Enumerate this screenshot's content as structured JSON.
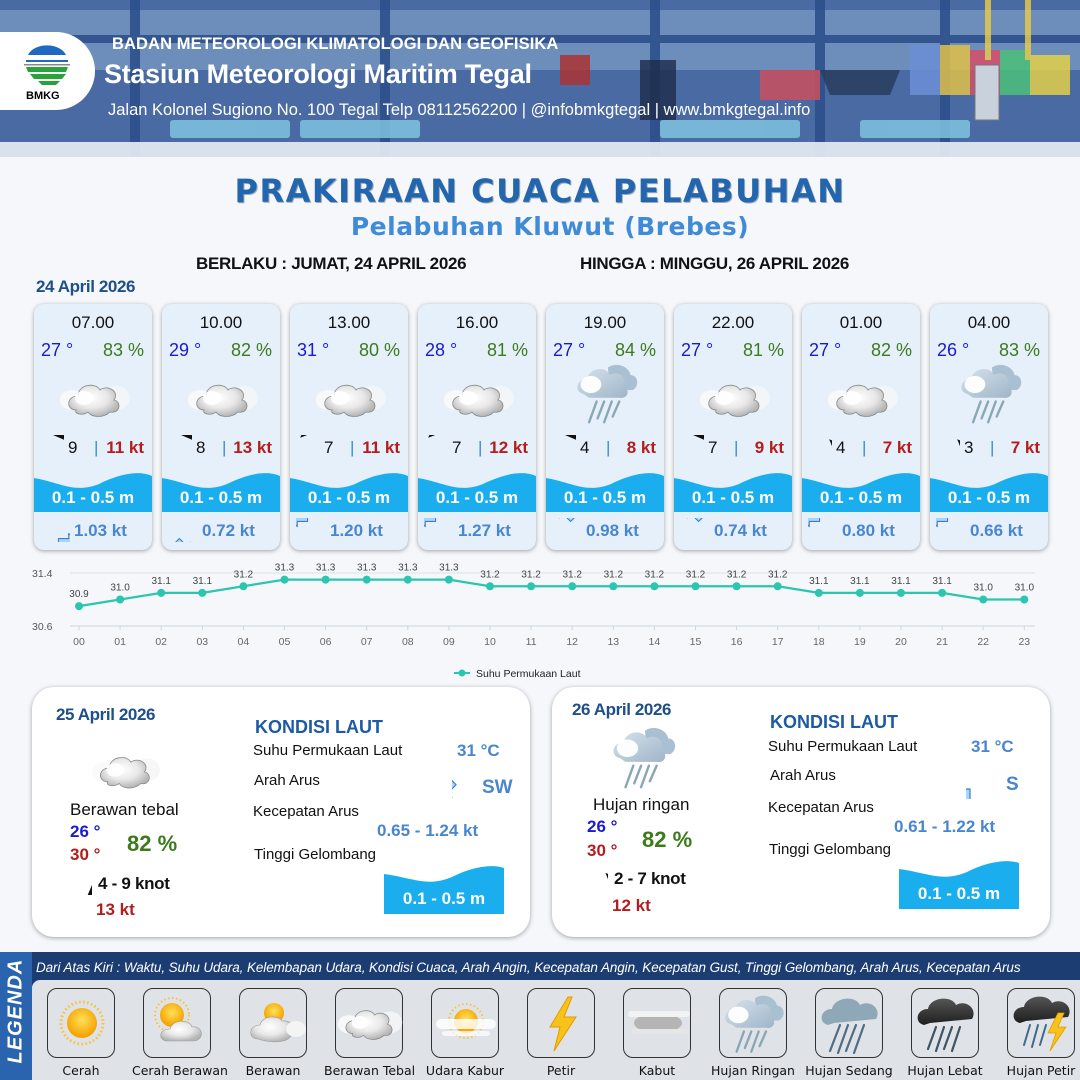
{
  "header": {
    "logo_text": "BMKG",
    "organization": "BADAN METEOROLOGI KLIMATOLOGI DAN GEOFISIKA",
    "station": "Stasiun Meteorologi Maritim Tegal",
    "address": "Jalan Kolonel Sugiono No. 100 Tegal Telp 08112562200 | @infobmkgtegal  | www.bmkgtegal.info"
  },
  "title": "PRAKIRAAN CUACA PELABUHAN",
  "subtitle": "Pelabuhan Kluwut (Brebes)",
  "validity": {
    "from": "BERLAKU : JUMAT, 24 APRIL 2026",
    "to": "HINGGA :  MINGGU, 26 APRIL 2026"
  },
  "day1": {
    "date": "24 April 2026",
    "slots": [
      {
        "time": "07.00",
        "temp": "27 °",
        "humidity": "83 %",
        "weather": "berawan-tebal",
        "wind_dir_deg": 270,
        "wind_speed": "9",
        "sep": "|",
        "gust": "11 kt",
        "wave": "0.1 - 0.5 m",
        "current_dir_deg": 90,
        "current_speed": "1.03 kt"
      },
      {
        "time": "10.00",
        "temp": "29 °",
        "humidity": "82 %",
        "weather": "berawan-tebal",
        "wind_dir_deg": 270,
        "wind_speed": "8",
        "sep": "|",
        "gust": "13 kt",
        "wave": "0.1 - 0.5 m",
        "current_dir_deg": 135,
        "current_speed": "0.72 kt"
      },
      {
        "time": "13.00",
        "temp": "31 °",
        "humidity": "80 %",
        "weather": "berawan-tebal",
        "wind_dir_deg": 225,
        "wind_speed": "7",
        "sep": "|",
        "gust": "11 kt",
        "wave": "0.1 - 0.5 m",
        "current_dir_deg": 270,
        "current_speed": "1.20 kt"
      },
      {
        "time": "16.00",
        "temp": "28 °",
        "humidity": "81 %",
        "weather": "berawan-tebal",
        "wind_dir_deg": 225,
        "wind_speed": "7",
        "sep": "|",
        "gust": "12 kt",
        "wave": "0.1 - 0.5 m",
        "current_dir_deg": 270,
        "current_speed": "1.27 kt"
      },
      {
        "time": "19.00",
        "temp": "27 °",
        "humidity": "84 %",
        "weather": "hujan-ringan",
        "wind_dir_deg": 270,
        "wind_speed": "4",
        "sep": "|",
        "gust": "8 kt",
        "wave": "0.1 - 0.5 m",
        "current_dir_deg": 315,
        "current_speed": "0.98 kt"
      },
      {
        "time": "22.00",
        "temp": "27 °",
        "humidity": "81 %",
        "weather": "berawan-tebal",
        "wind_dir_deg": 270,
        "wind_speed": "7",
        "sep": "|",
        "gust": "9 kt",
        "wave": "0.1 - 0.5 m",
        "current_dir_deg": 315,
        "current_speed": "0.74 kt"
      },
      {
        "time": "01.00",
        "temp": "27 °",
        "humidity": "82 %",
        "weather": "berawan-tebal",
        "wind_dir_deg": 315,
        "wind_speed": "4",
        "sep": "|",
        "gust": "7 kt",
        "wave": "0.1 - 0.5 m",
        "current_dir_deg": 270,
        "current_speed": "0.80 kt"
      },
      {
        "time": "04.00",
        "temp": "26 °",
        "humidity": "83 %",
        "weather": "hujan-ringan",
        "wind_dir_deg": 315,
        "wind_speed": "3",
        "sep": "|",
        "gust": "7 kt",
        "wave": "0.1 - 0.5 m",
        "current_dir_deg": 270,
        "current_speed": "0.66 kt"
      }
    ]
  },
  "chart_data": {
    "type": "line",
    "title": "",
    "xlabel": "",
    "ylabel": "",
    "categories": [
      "00",
      "01",
      "02",
      "03",
      "04",
      "05",
      "06",
      "07",
      "08",
      "09",
      "10",
      "11",
      "12",
      "13",
      "14",
      "15",
      "16",
      "17",
      "18",
      "19",
      "20",
      "21",
      "22",
      "23"
    ],
    "series": [
      {
        "name": "Suhu Permukaan Laut",
        "color": "#2cc5b0",
        "values": [
          30.9,
          31.0,
          31.1,
          31.1,
          31.2,
          31.3,
          31.3,
          31.3,
          31.3,
          31.3,
          31.2,
          31.2,
          31.2,
          31.2,
          31.2,
          31.2,
          31.2,
          31.2,
          31.1,
          31.1,
          31.1,
          31.1,
          31.0,
          31.0
        ],
        "labels": [
          "30.9",
          "31.0",
          "31.1",
          "31.1",
          "31.2",
          "31.3",
          "31.3",
          "31.3",
          "31.3",
          "31.3",
          "31.2",
          "31.2",
          "31.2",
          "31.2",
          "31.2",
          "31.2",
          "31.2",
          "31.2",
          "31.1",
          "31.1",
          "31.1",
          "31.1",
          "31.0",
          "31.0"
        ]
      }
    ],
    "ylim": [
      30.6,
      31.4
    ],
    "yticks": [
      "31.4",
      "30.6"
    ],
    "grid": true,
    "legend_position": "bottom-center",
    "legend_label": "Suhu Permukaan Laut"
  },
  "day2": {
    "date": "25 April 2026",
    "weather": "berawan-tebal",
    "condition": "Berawan tebal",
    "temp_min": "26 °",
    "temp_max": "30 °",
    "humidity": "82 %",
    "wind_dir_deg": 0,
    "wind": "4  - 9 knot",
    "gust": "13 kt",
    "sea": {
      "heading": "KONDISI LAUT",
      "sst_label": "Suhu Permukaan Laut",
      "sst_value": "31 °C",
      "current_dir_label": "Arah Arus",
      "current_dir_value": "SW",
      "current_dir_deg": 225,
      "current_speed_label": "Kecepatan Arus",
      "current_speed_value": "0.65  - 1.24 kt",
      "wave_label": "Tinggi Gelombang",
      "wave_value": "0.1 - 0.5 m"
    }
  },
  "day3": {
    "date": "26 April 2026",
    "weather": "hujan-ringan",
    "condition": "Hujan ringan",
    "temp_min": "26 °",
    "temp_max": "30 °",
    "humidity": "82 %",
    "wind_dir_deg": 315,
    "wind": "2  - 7 knot",
    "gust": "12 kt",
    "sea": {
      "heading": "KONDISI LAUT",
      "sst_label": "Suhu Permukaan Laut",
      "sst_value": "31 °C",
      "current_dir_label": "Arah Arus",
      "current_dir_value": "S",
      "current_dir_deg": 180,
      "current_speed_label": "Kecepatan Arus",
      "current_speed_value": "0.61  - 1.22 kt",
      "wave_label": "Tinggi Gelombang",
      "wave_value": "0.1 - 0.5 m"
    }
  },
  "legend": {
    "side_label": "LEGENDA",
    "description": "Dari Atas Kiri : Waktu, Suhu Udara, Kelembapan Udara, Kondisi Cuaca, Arah Angin, Kecepatan Angin, Kecepatan Gust, Tinggi Gelombang, Arah Arus, Kecepatan Arus",
    "items": [
      {
        "label": "Cerah",
        "icon": "sun-icon"
      },
      {
        "label": "Cerah Berawan",
        "icon": "sun-cloud-icon"
      },
      {
        "label": "Berawan",
        "icon": "cloudy-icon"
      },
      {
        "label": "Berawan Tebal",
        "icon": "overcast-icon"
      },
      {
        "label": "Udara Kabur",
        "icon": "haze-icon"
      },
      {
        "label": "Petir",
        "icon": "lightning-icon"
      },
      {
        "label": "Kabut",
        "icon": "fog-icon"
      },
      {
        "label": "Hujan Ringan",
        "icon": "light-rain-icon"
      },
      {
        "label": "Hujan Sedang",
        "icon": "moderate-rain-icon"
      },
      {
        "label": "Hujan Lebat",
        "icon": "heavy-rain-icon"
      },
      {
        "label": "Hujan Petir",
        "icon": "thunderstorm-icon"
      }
    ]
  },
  "colors": {
    "title": "#2466ad",
    "subtitle": "#3f8bd8",
    "temp": "#1a1ad0",
    "humidity": "#3c7a1a",
    "gust": "#b31d1d",
    "wave": "#1aaeef",
    "current": "#4a86cf",
    "chart_line": "#2cc5b0",
    "legend_bar": "#1c3d72"
  }
}
